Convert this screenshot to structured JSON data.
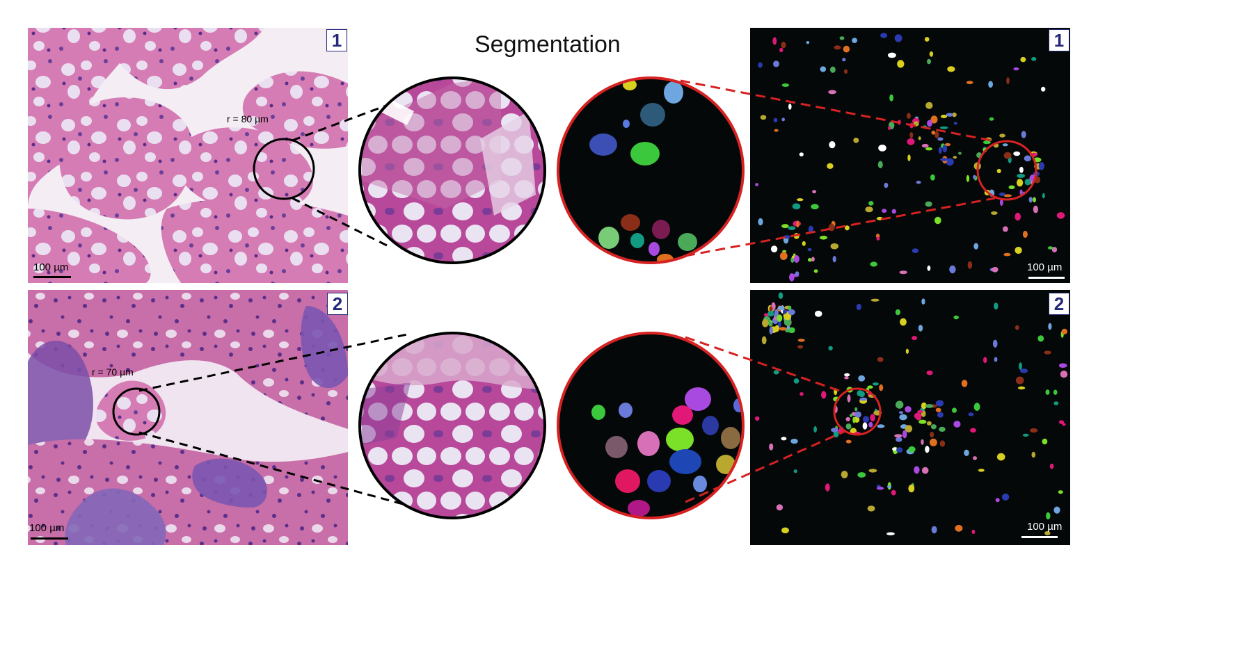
{
  "title": "Segmentation",
  "rows": [
    {
      "label": "1",
      "radius_label": "r = 80 µm",
      "scale_left": "100 µm",
      "scale_right": "100 µm"
    },
    {
      "label": "2",
      "radius_label": "r = 70 µm",
      "scale_left": "100 µm",
      "scale_right": "100 µm"
    }
  ],
  "colors": {
    "tissue_pink": "#d85a9e",
    "tissue_purple": "#6a3f99",
    "goblet": "#e4dcef",
    "seg_background": "#050808",
    "highlight_red": "#d62222",
    "badge_blue": "#23287a"
  }
}
